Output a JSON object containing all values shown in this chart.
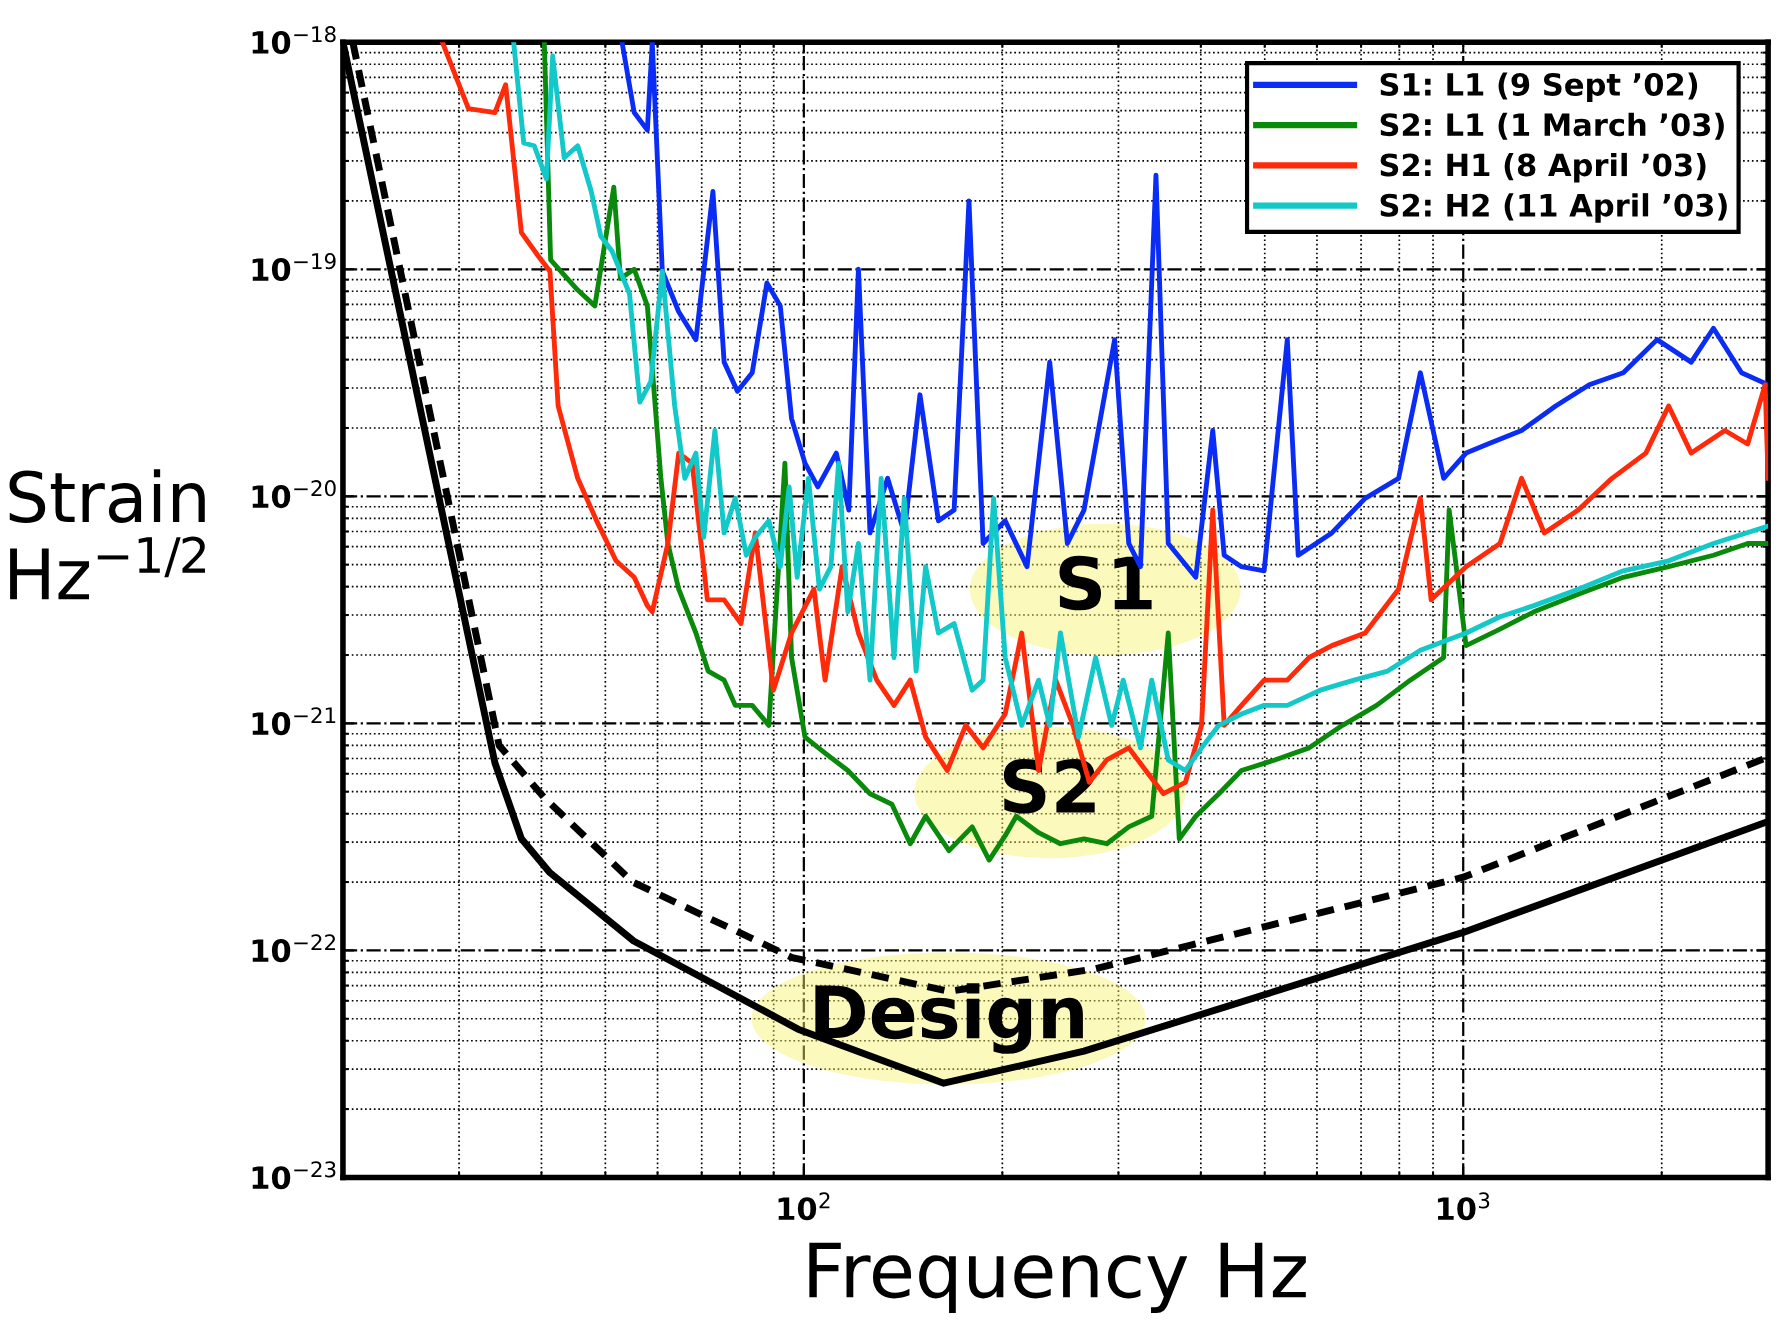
{
  "chart_data": {
    "type": "line",
    "xlabel": "Frequency Hz",
    "ylabel": "Strain\nHz$^{−1/2}$",
    "log": "xy",
    "grid": true,
    "legend": "top right",
    "line_style": "solid",
    "marker": "none",
    "xlim": [
      20,
      2900
    ],
    "ylim": [
      1e-23,
      1e-18
    ],
    "xticks": [
      {
        "value": 100,
        "label": "10$^{2}$"
      },
      {
        "value": 1000,
        "label": "10$^{3}$"
      }
    ],
    "yticks": [
      {
        "value": 1e-23,
        "label": "10$^{−23}$"
      },
      {
        "value": 1e-22,
        "label": "10$^{−22}$"
      },
      {
        "value": 1e-21,
        "label": "10$^{−21}$"
      },
      {
        "value": 1e-20,
        "label": "10$^{−20}$"
      },
      {
        "value": 1e-19,
        "label": "10$^{−19}$"
      },
      {
        "value": 1e-18,
        "label": "10$^{−18}$"
      }
    ],
    "series": [
      {
        "name": "S1: L1 (9 Sept ’02)",
        "color": "#0a2cf5",
        "x": [
          53,
          55.3,
          57.9,
          58.9,
          61,
          64.6,
          68.6,
          72.8,
          75.7,
          79.3,
          83.5,
          87.9,
          92.1,
          95.8,
          100.4,
          105,
          112,
          117,
          121,
          126,
          134,
          142,
          150,
          160,
          169,
          178,
          187,
          202,
          218,
          236,
          251,
          266,
          296,
          311,
          324,
          342,
          357,
          393,
          417,
          434,
          461,
          499,
          541,
          562,
          632,
          710,
          798,
          861,
          934,
          1010,
          1090,
          1226,
          1381,
          1553,
          1749,
          1968,
          2217,
          2396,
          2643,
          2900
        ],
        "values": [
          1e-18,
          4.9e-19,
          4.1e-19,
          1e-18,
          9.8e-20,
          6.5e-20,
          4.9e-20,
          2.2e-19,
          3.9e-20,
          2.9e-20,
          3.5e-20,
          8.7e-20,
          6.9e-20,
          2.2e-20,
          1.4e-20,
          1.1e-20,
          1.55e-20,
          8.7e-21,
          1e-19,
          6.9e-21,
          1.2e-20,
          6.9e-21,
          2.8e-20,
          7.8e-21,
          8.7e-21,
          2e-19,
          6.2e-21,
          7.8e-21,
          4.9e-21,
          3.9e-20,
          6.2e-21,
          8.7e-21,
          4.9e-20,
          6.2e-21,
          4.9e-21,
          2.6e-19,
          6.2e-21,
          4.4e-21,
          1.95e-20,
          5.5e-21,
          4.9e-21,
          4.7e-21,
          4.9e-20,
          5.5e-21,
          6.9e-21,
          9.8e-21,
          1.2e-20,
          3.5e-20,
          1.2e-20,
          1.55e-20,
          1.7e-20,
          1.95e-20,
          2.5e-20,
          3.1e-20,
          3.5e-20,
          4.9e-20,
          3.9e-20,
          5.5e-20,
          3.5e-20,
          3.1e-20
        ]
      },
      {
        "name": "S2: L1 (1 March ’03)",
        "color": "#0a8a0a",
        "x": [
          40.4,
          41.3,
          45.4,
          48.2,
          51.5,
          52.7,
          55.3,
          57.9,
          60.7,
          62.2,
          64.6,
          68.6,
          71.6,
          75.7,
          78.7,
          83.5,
          88.5,
          93.6,
          95.8,
          100.4,
          107.7,
          116.6,
          126,
          136,
          145,
          153,
          166,
          180,
          191,
          202,
          210,
          227,
          245,
          266,
          288,
          311,
          337,
          357,
          371,
          393,
          426,
          461,
          518,
          584,
          656,
          739,
          831,
          934,
          952,
          1010,
          1137,
          1280,
          1494,
          1749,
          2049,
          2396,
          2700,
          2900
        ],
        "values": [
          1e-18,
          1.1e-19,
          8.1e-20,
          6.9e-20,
          2.3e-19,
          9.1e-20,
          1e-19,
          6.9e-20,
          1.2e-20,
          6.2e-21,
          3.9e-21,
          2.5e-21,
          1.7e-21,
          1.55e-21,
          1.2e-21,
          1.2e-21,
          9.8e-22,
          1.4e-20,
          1.95e-21,
          8.7e-22,
          7.4e-22,
          6.2e-22,
          4.9e-22,
          4.4e-22,
          2.95e-22,
          3.9e-22,
          2.75e-22,
          3.5e-22,
          2.5e-22,
          3.2e-22,
          3.9e-22,
          3.3e-22,
          2.95e-22,
          3.1e-22,
          2.95e-22,
          3.5e-22,
          3.9e-22,
          2.5e-21,
          3.1e-22,
          3.9e-22,
          4.9e-22,
          6.2e-22,
          6.9e-22,
          7.8e-22,
          9.8e-22,
          1.2e-21,
          1.55e-21,
          1.95e-21,
          8.7e-21,
          2.2e-21,
          2.6e-21,
          3.1e-21,
          3.7e-21,
          4.4e-21,
          4.9e-21,
          5.5e-21,
          6.2e-21,
          6.2e-21
        ]
      },
      {
        "name": "S2: H1 (8 April ’03)",
        "color": "#ff2a0a",
        "x": [
          28.3,
          31,
          34,
          35.3,
          37.3,
          39.5,
          41.2,
          42.4,
          45.4,
          48.5,
          51.9,
          55.3,
          57.9,
          58.9,
          62.2,
          64.6,
          67.7,
          71.4,
          75.7,
          80.3,
          84.4,
          89.9,
          95.8,
          103.6,
          107.7,
          114.3,
          121,
          129,
          137,
          145,
          153,
          165,
          176,
          187,
          202,
          214,
          227,
          241,
          256,
          271,
          288,
          311,
          330,
          351,
          379,
          401,
          417,
          434,
          461,
          499,
          541,
          584,
          632,
          710,
          798,
          861,
          894,
          1010,
          1137,
          1226,
          1327,
          1494,
          1681,
          1892,
          2049,
          2217,
          2494,
          2700,
          2870,
          2900
        ],
        "values": [
          1e-18,
          5.1e-19,
          4.9e-19,
          6.5e-19,
          1.45e-19,
          1.15e-19,
          9.8e-20,
          2.5e-20,
          1.2e-20,
          7.8e-21,
          5.2e-21,
          4.4e-21,
          3.3e-21,
          3.1e-21,
          6.2e-21,
          1.55e-20,
          1.4e-20,
          3.5e-21,
          3.5e-21,
          2.75e-21,
          6.9e-21,
          1.4e-21,
          2.5e-21,
          3.9e-21,
          1.55e-21,
          4.9e-21,
          2.5e-21,
          1.55e-21,
          1.2e-21,
          1.55e-21,
          8.7e-22,
          6.2e-22,
          9.8e-22,
          7.8e-22,
          1.1e-21,
          2.5e-21,
          6.2e-22,
          1.55e-21,
          9.8e-22,
          5.5e-22,
          6.9e-22,
          7.8e-22,
          6.2e-22,
          4.9e-22,
          5.5e-22,
          9.8e-22,
          8.7e-21,
          9.8e-22,
          1.2e-21,
          1.55e-21,
          1.55e-21,
          1.95e-21,
          2.2e-21,
          2.5e-21,
          3.9e-21,
          9.8e-21,
          3.5e-21,
          4.9e-21,
          6.2e-21,
          1.2e-20,
          6.9e-21,
          8.7e-21,
          1.2e-20,
          1.55e-20,
          2.5e-20,
          1.55e-20,
          1.95e-20,
          1.7e-20,
          3.1e-20,
          1.2e-20
        ]
      },
      {
        "name": "S2: H2 (11 April ’03)",
        "color": "#12c8c8",
        "x": [
          36.3,
          37.6,
          39,
          40.7,
          41.6,
          43.3,
          45.4,
          47.6,
          49.2,
          51.2,
          54.4,
          56.4,
          58.6,
          61,
          63.7,
          66,
          68.6,
          70.5,
          73.3,
          75.7,
          78.7,
          81.8,
          84.4,
          88.5,
          92.1,
          95,
          97.7,
          101.6,
          105.6,
          109.9,
          112.9,
          116.6,
          121,
          126,
          131,
          137,
          142,
          148,
          153,
          160,
          169,
          180,
          187,
          194,
          202,
          214,
          227,
          236,
          245,
          261,
          277,
          293,
          305,
          324,
          337,
          357,
          379,
          401,
          426,
          461,
          499,
          541,
          607,
          683,
          768,
          861,
          1010,
          1137,
          1280,
          1494,
          1749,
          2049,
          2396,
          2900
        ],
        "values": [
          1e-18,
          3.6e-19,
          3.5e-19,
          2.5e-19,
          8.7e-19,
          3.1e-19,
          3.5e-19,
          2.2e-19,
          1.4e-19,
          1.2e-19,
          7.8e-20,
          2.6e-20,
          3.2e-20,
          9.8e-20,
          2.5e-20,
          1.2e-20,
          1.55e-20,
          6.6e-21,
          1.95e-20,
          6.9e-21,
          9.8e-21,
          5.5e-21,
          6.6e-21,
          7.8e-21,
          4.9e-21,
          1.1e-20,
          4.4e-21,
          1.2e-20,
          3.9e-21,
          4.9e-21,
          1.4e-20,
          3.1e-21,
          6.2e-21,
          1.55e-21,
          1.2e-20,
          1.95e-21,
          9.8e-21,
          1.7e-21,
          4.9e-21,
          2.5e-21,
          2.75e-21,
          1.4e-21,
          1.55e-21,
          9.8e-21,
          1.95e-21,
          9.8e-22,
          1.55e-21,
          9.8e-22,
          2.5e-21,
          8.7e-22,
          1.95e-21,
          9.8e-22,
          1.55e-21,
          7.8e-22,
          1.55e-21,
          6.9e-22,
          6.2e-22,
          7.8e-22,
          9.8e-22,
          1.1e-21,
          1.2e-21,
          1.2e-21,
          1.4e-21,
          1.55e-21,
          1.7e-21,
          2.1e-21,
          2.5e-21,
          2.95e-21,
          3.3e-21,
          3.9e-21,
          4.7e-21,
          5.2e-21,
          6.2e-21,
          7.4e-21
        ]
      },
      {
        "color": "#000000",
        "line_style": "solid",
        "x": [
          20,
          34,
          37.3,
          41.2,
          55.2,
          98,
          163,
          266,
          1000,
          2900
        ],
        "values": [
          1e-18,
          6.7e-22,
          3.1e-22,
          2.2e-22,
          1.1e-22,
          4.5e-23,
          2.6e-23,
          3.6e-23,
          1.2e-22,
          3.7e-22
        ]
      },
      {
        "color": "#000000",
        "line_style": "dashed",
        "x": [
          20.7,
          34.5,
          40.4,
          55,
          96,
          166,
          277,
          1000,
          2900
        ],
        "values": [
          1e-18,
          8e-22,
          4.7e-22,
          2e-22,
          9.3e-23,
          6.6e-23,
          8.3e-23,
          2.1e-22,
          7.1e-22
        ]
      }
    ],
    "annotations": [
      "S1",
      "S2",
      "Design"
    ]
  }
}
